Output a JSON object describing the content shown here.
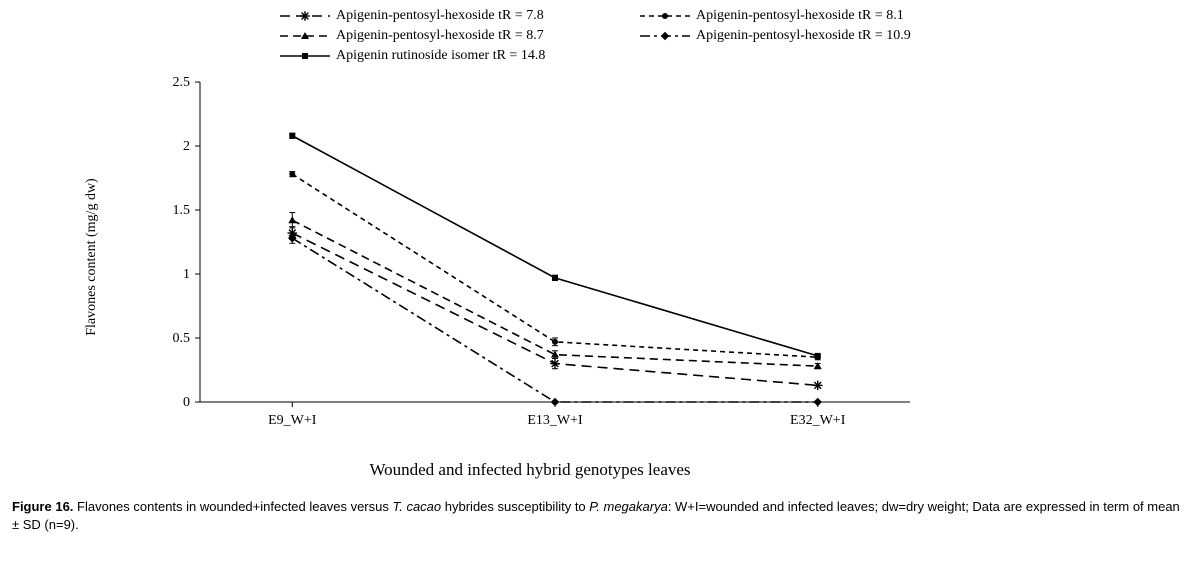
{
  "chart": {
    "type": "line",
    "background_color": "#ffffff",
    "axis_color": "#000000",
    "text_color": "#000000",
    "title_fontsize": 14,
    "tick_fontsize": 14,
    "categories": [
      "E9_W+I",
      "E13_W+I",
      "E32_W+I"
    ],
    "ylim": [
      0,
      2.5
    ],
    "ytick_step": 0.5,
    "yticks": [
      "0",
      "0.5",
      "1",
      "1.5",
      "2",
      "2.5"
    ],
    "ylabel": "Flavones content (mg/g dw)",
    "xlabel_a": "Wounded and infected ",
    "xlabel_b": "hybrid genotypes leaves",
    "line_color": "#000000",
    "line_width": 1.6,
    "marker_size": 6,
    "error_cap_w": 6,
    "series": [
      {
        "id": "s1",
        "label": "Apigenin-pentosyl-hexoside tR = 7.8",
        "marker": "asterisk",
        "dash": "10,6",
        "values": [
          1.32,
          0.3,
          0.13
        ],
        "errors": [
          0.05,
          0.04,
          0.0
        ]
      },
      {
        "id": "s2",
        "label": "Apigenin-pentosyl-hexoside tR = 8.1",
        "marker": "circle",
        "dash": "5,4",
        "values": [
          1.78,
          0.47,
          0.35
        ],
        "errors": [
          0.02,
          0.03,
          0.02
        ]
      },
      {
        "id": "s3",
        "label": "Apigenin-pentosyl-hexoside tR = 8.7",
        "marker": "triangle",
        "dash": "8,5",
        "values": [
          1.42,
          0.37,
          0.28
        ],
        "errors": [
          0.06,
          0.03,
          0.02
        ]
      },
      {
        "id": "s4",
        "label": "Apigenin-pentosyl-hexoside tR = 10.9",
        "marker": "diamond",
        "dash": "10,4,3,4",
        "values": [
          1.28,
          0.0,
          0.0
        ],
        "errors": [
          0.04,
          0.0,
          0.0
        ]
      },
      {
        "id": "s5",
        "label": "Apigenin rutinoside isomer tR = 14.8",
        "marker": "square",
        "dash": "",
        "values": [
          2.08,
          0.97,
          0.36
        ],
        "errors": [
          0.02,
          0.02,
          0.01
        ]
      }
    ],
    "legend_layout": [
      [
        "s1",
        "s2"
      ],
      [
        "s3",
        "s4"
      ],
      [
        "s5",
        null
      ]
    ]
  },
  "caption": {
    "fig_label": "Figure 16.",
    "part1": " Flavones contents in wounded+infected leaves versus ",
    "ital1": "T. cacao",
    "part2": " hybrides susceptibility to ",
    "ital2": "P. megakarya",
    "part3": ": W+I=wounded and infected leaves; dw=dry weight; Data are expressed in term of mean ± SD (n=9)."
  }
}
